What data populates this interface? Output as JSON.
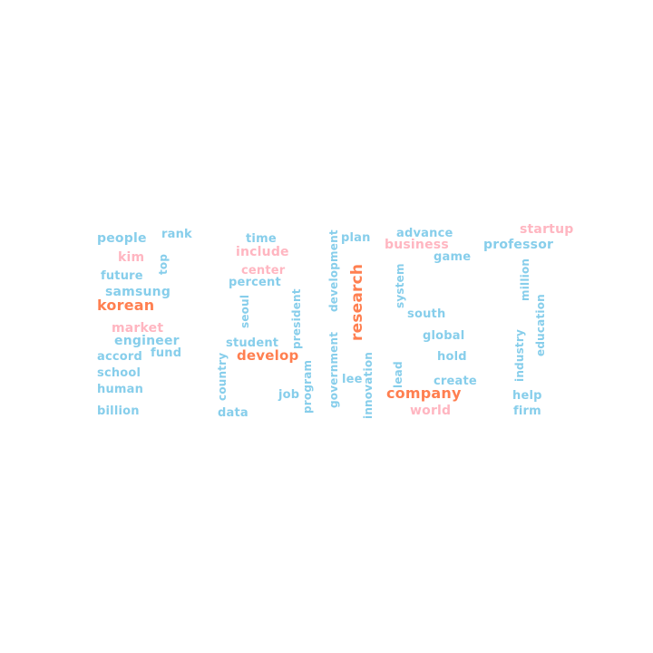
{
  "word_cloud": {
    "colors": {
      "blue": "#87CEEB",
      "pink": "#FFB6C1",
      "orange": "#FF7F50",
      "background": "#FFFFFF"
    },
    "words": [
      {
        "text": "people",
        "color": "blue"
      },
      {
        "text": "rank",
        "color": "blue"
      },
      {
        "text": "kim",
        "color": "pink"
      },
      {
        "text": "top",
        "color": "blue"
      },
      {
        "text": "future",
        "color": "blue"
      },
      {
        "text": "samsung",
        "color": "blue"
      },
      {
        "text": "korean",
        "color": "orange"
      },
      {
        "text": "market",
        "color": "pink"
      },
      {
        "text": "engineer",
        "color": "blue"
      },
      {
        "text": "accord",
        "color": "blue"
      },
      {
        "text": "fund",
        "color": "blue"
      },
      {
        "text": "school",
        "color": "blue"
      },
      {
        "text": "human",
        "color": "blue"
      },
      {
        "text": "billion",
        "color": "blue"
      },
      {
        "text": "time",
        "color": "blue"
      },
      {
        "text": "include",
        "color": "pink"
      },
      {
        "text": "center",
        "color": "pink"
      },
      {
        "text": "percent",
        "color": "blue"
      },
      {
        "text": "seoul",
        "color": "blue"
      },
      {
        "text": "president",
        "color": "blue"
      },
      {
        "text": "student",
        "color": "blue"
      },
      {
        "text": "develop",
        "color": "orange"
      },
      {
        "text": "country",
        "color": "blue"
      },
      {
        "text": "data",
        "color": "blue"
      },
      {
        "text": "job",
        "color": "blue"
      },
      {
        "text": "program",
        "color": "blue"
      },
      {
        "text": "government",
        "color": "blue"
      },
      {
        "text": "development",
        "color": "blue"
      },
      {
        "text": "research",
        "color": "orange"
      },
      {
        "text": "plan",
        "color": "blue"
      },
      {
        "text": "lee",
        "color": "blue"
      },
      {
        "text": "innovation",
        "color": "blue"
      },
      {
        "text": "advance",
        "color": "blue"
      },
      {
        "text": "business",
        "color": "pink"
      },
      {
        "text": "game",
        "color": "blue"
      },
      {
        "text": "system",
        "color": "blue"
      },
      {
        "text": "south",
        "color": "blue"
      },
      {
        "text": "global",
        "color": "blue"
      },
      {
        "text": "hold",
        "color": "blue"
      },
      {
        "text": "lead",
        "color": "blue"
      },
      {
        "text": "create",
        "color": "blue"
      },
      {
        "text": "company",
        "color": "orange"
      },
      {
        "text": "world",
        "color": "pink"
      },
      {
        "text": "startup",
        "color": "pink"
      },
      {
        "text": "professor",
        "color": "blue"
      },
      {
        "text": "million",
        "color": "blue"
      },
      {
        "text": "education",
        "color": "blue"
      },
      {
        "text": "industry",
        "color": "blue"
      },
      {
        "text": "help",
        "color": "blue"
      },
      {
        "text": "firm",
        "color": "blue"
      }
    ]
  }
}
